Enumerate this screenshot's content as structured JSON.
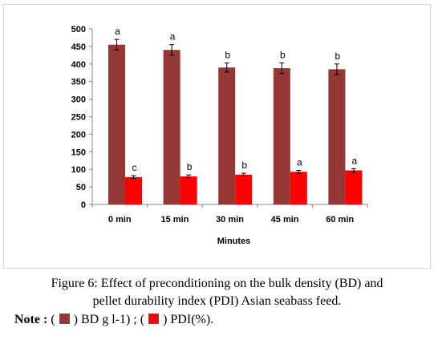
{
  "figure": {
    "caption_label": "Figure 6:",
    "caption_line1": " Effect of preconditioning on the bulk density (BD) and",
    "caption_line2": "pellet durability index (PDI) Asian seabass feed.",
    "note_label": "Note :",
    "note_open1": " ( ",
    "note_series1": " ) BD g l-1) ; ( ",
    "note_series2": " ) PDI(%)."
  },
  "chart_data": {
    "type": "bar",
    "title": "",
    "xlabel": "Minutes",
    "ylabel": "",
    "ylim": [
      0,
      500
    ],
    "yticks": [
      0,
      50,
      100,
      150,
      200,
      250,
      300,
      350,
      400,
      450,
      500
    ],
    "grid": false,
    "legend": "none",
    "categories": [
      "0 min",
      "15 min",
      "30 min",
      "45 min",
      "60 min"
    ],
    "series": [
      {
        "color": "#953735",
        "values": [
          455,
          440,
          390,
          388,
          385
        ],
        "errors": [
          15,
          15,
          13,
          15,
          15
        ],
        "labels": [
          "a",
          "a",
          "b",
          "b",
          "b"
        ]
      },
      {
        "color": "#ff0000",
        "values": [
          78,
          80,
          85,
          93,
          97
        ],
        "errors": [
          4,
          4,
          4,
          4,
          5
        ],
        "labels": [
          "c",
          "b",
          "b",
          "a",
          "a"
        ]
      }
    ]
  }
}
